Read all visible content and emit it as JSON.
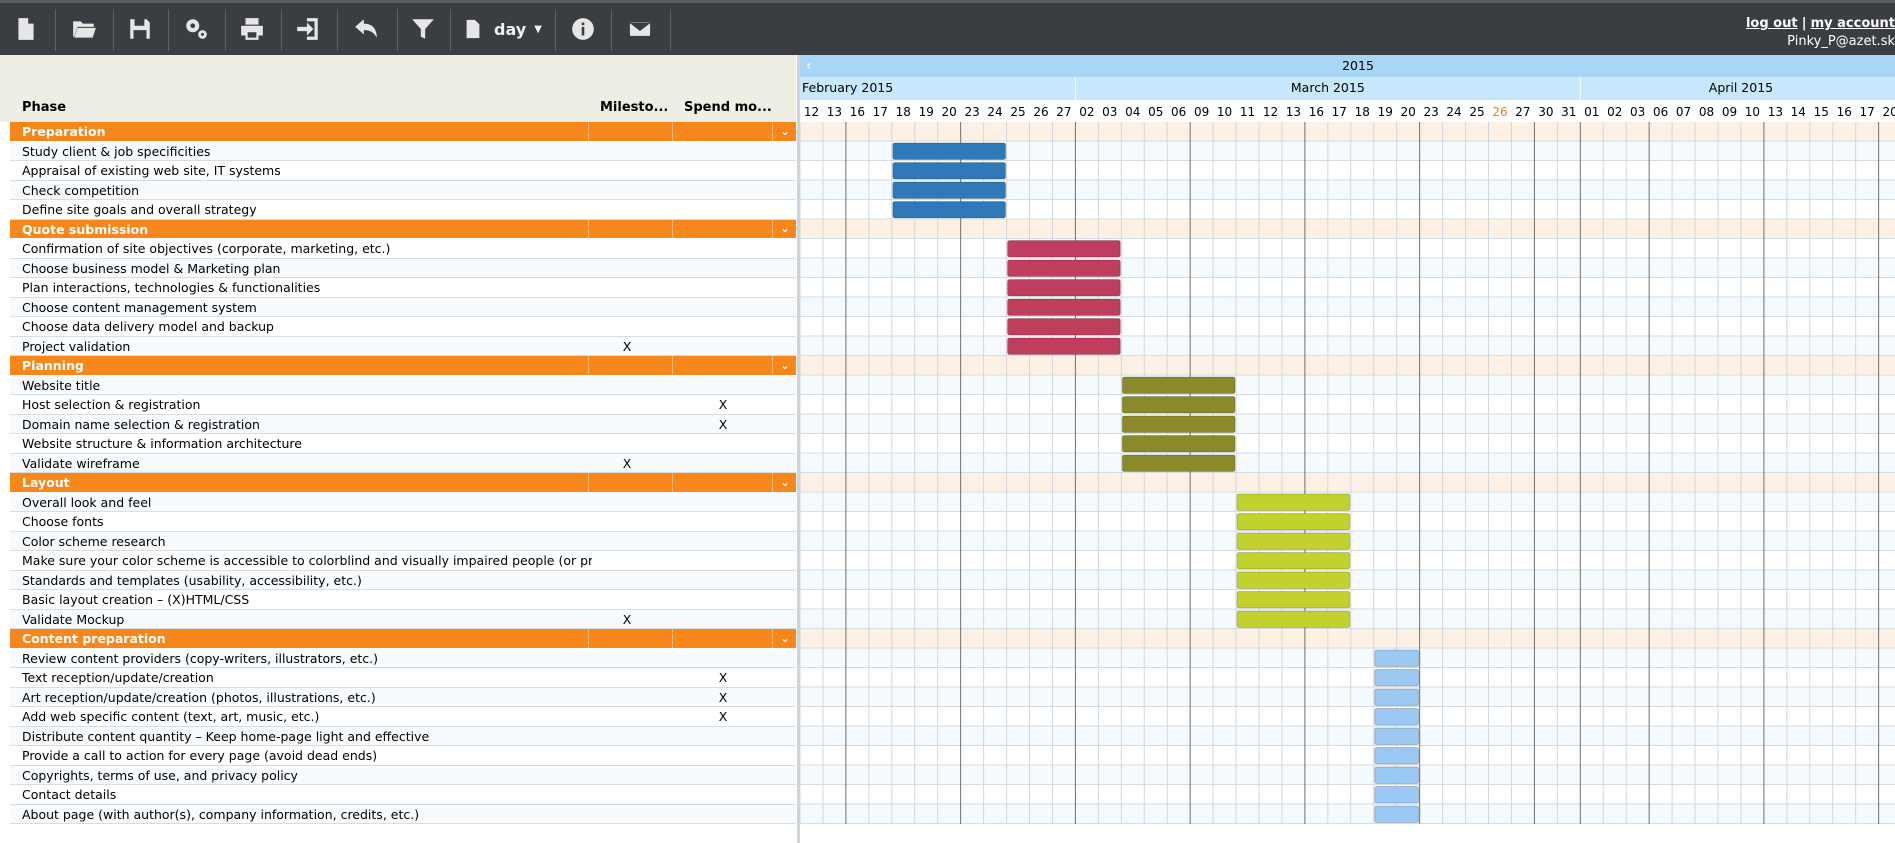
{
  "toolbar": {
    "buttons": [
      {
        "name": "new-document-icon",
        "label": "New"
      },
      {
        "name": "open-folder-icon",
        "label": "Open"
      },
      {
        "name": "save-icon",
        "label": "Save"
      },
      {
        "name": "settings-icon",
        "label": "Settings"
      },
      {
        "name": "print-icon",
        "label": "Print"
      },
      {
        "name": "export-icon",
        "label": "Export"
      },
      {
        "name": "undo-icon",
        "label": "Undo"
      },
      {
        "name": "filter-icon",
        "label": "Filter"
      }
    ],
    "view_mode": "day",
    "info_icon": "info-icon",
    "mail_icon": "mail-icon"
  },
  "user": {
    "logout_label": "log out",
    "separator": "|",
    "account_label": "my account",
    "email": "Pinky_P@azet.sk"
  },
  "columns": {
    "phase": "Phase",
    "milestone": "Milesto...",
    "spend": "Spend mo..."
  },
  "timeline": {
    "year": "2015",
    "months": [
      "February 2015",
      "March 2015",
      "April 2015"
    ],
    "days": [
      "12",
      "13",
      "16",
      "17",
      "18",
      "19",
      "20",
      "23",
      "24",
      "25",
      "26",
      "27",
      "02",
      "03",
      "04",
      "05",
      "06",
      "09",
      "10",
      "11",
      "12",
      "13",
      "16",
      "17",
      "18",
      "19",
      "20",
      "23",
      "24",
      "25",
      "26",
      "27",
      "30",
      "31",
      "01",
      "02",
      "03",
      "06",
      "07",
      "08",
      "09",
      "10",
      "13",
      "14",
      "15",
      "16",
      "17",
      "20"
    ],
    "today": "26",
    "today_color": "#e87d1e"
  },
  "groups": [
    {
      "title": "Preparation",
      "color": "#2f79b8",
      "tasks": [
        {
          "name": "Study client & job specificities",
          "milestone": "",
          "spend": ""
        },
        {
          "name": "Appraisal of existing web site, IT systems",
          "milestone": "",
          "spend": ""
        },
        {
          "name": "Check competition",
          "milestone": "",
          "spend": ""
        },
        {
          "name": "Define site goals and overall strategy",
          "milestone": "",
          "spend": ""
        }
      ]
    },
    {
      "title": "Quote submission",
      "color": "#bf3e5e",
      "tasks": [
        {
          "name": "Confirmation of site objectives (corporate, marketing, etc.)",
          "milestone": "",
          "spend": ""
        },
        {
          "name": "Choose business model & Marketing plan",
          "milestone": "",
          "spend": ""
        },
        {
          "name": "Plan interactions, technologies & functionalities",
          "milestone": "",
          "spend": ""
        },
        {
          "name": "Choose content management system",
          "milestone": "",
          "spend": ""
        },
        {
          "name": "Choose data delivery model and backup",
          "milestone": "",
          "spend": ""
        },
        {
          "name": "Project validation",
          "milestone": "X",
          "spend": ""
        }
      ]
    },
    {
      "title": "Planning",
      "color": "#8a8a2c",
      "tasks": [
        {
          "name": "Website title",
          "milestone": "",
          "spend": ""
        },
        {
          "name": "Host selection & registration",
          "milestone": "",
          "spend": "X"
        },
        {
          "name": "Domain name selection & registration",
          "milestone": "",
          "spend": "X"
        },
        {
          "name": "Website structure & information architecture",
          "milestone": "",
          "spend": ""
        },
        {
          "name": "Validate wireframe",
          "milestone": "X",
          "spend": ""
        }
      ]
    },
    {
      "title": "Layout",
      "color": "#c3d12e",
      "tasks": [
        {
          "name": "Overall look and feel",
          "milestone": "",
          "spend": ""
        },
        {
          "name": "Choose fonts",
          "milestone": "",
          "spend": ""
        },
        {
          "name": "Color scheme research",
          "milestone": "",
          "spend": ""
        },
        {
          "name": "Make sure your color scheme is accessible to colorblind and visually impaired people (or pr...",
          "milestone": "",
          "spend": ""
        },
        {
          "name": "Standards and templates (usability, accessibility, etc.)",
          "milestone": "",
          "spend": ""
        },
        {
          "name": "Basic layout creation – (X)HTML/CSS",
          "milestone": "",
          "spend": ""
        },
        {
          "name": "Validate Mockup",
          "milestone": "X",
          "spend": ""
        }
      ]
    },
    {
      "title": "Content preparation",
      "color": "#9cc8f4",
      "tasks": [
        {
          "name": "Review content providers (copy-writers, illustrators, etc.)",
          "milestone": "",
          "spend": ""
        },
        {
          "name": "Text reception/update/creation",
          "milestone": "",
          "spend": "X"
        },
        {
          "name": "Art reception/update/creation (photos, illustrations, etc.)",
          "milestone": "",
          "spend": "X"
        },
        {
          "name": "Add web specific content (text, art, music, etc.)",
          "milestone": "",
          "spend": "X"
        },
        {
          "name": "Distribute content quantity – Keep home-page light and effective",
          "milestone": "",
          "spend": ""
        },
        {
          "name": "Provide a call to action for every page (avoid dead ends)",
          "milestone": "",
          "spend": ""
        },
        {
          "name": "Copyrights, terms of use, and privacy policy",
          "milestone": "",
          "spend": ""
        },
        {
          "name": "Contact details",
          "milestone": "",
          "spend": ""
        },
        {
          "name": "About page (with author(s), company information, credits, etc.)",
          "milestone": "",
          "spend": ""
        }
      ]
    }
  ],
  "bars": [
    {
      "group": 0,
      "start": "2015-02-18",
      "end": "2015-02-24"
    },
    {
      "group": 1,
      "start": "2015-02-25",
      "end": "2015-03-03"
    },
    {
      "group": 2,
      "start": "2015-03-04",
      "end": "2015-03-10"
    },
    {
      "group": 3,
      "start": "2015-03-11",
      "end": "2015-03-17"
    },
    {
      "group": 4,
      "start": "2015-03-19",
      "end": "2015-03-20"
    }
  ]
}
